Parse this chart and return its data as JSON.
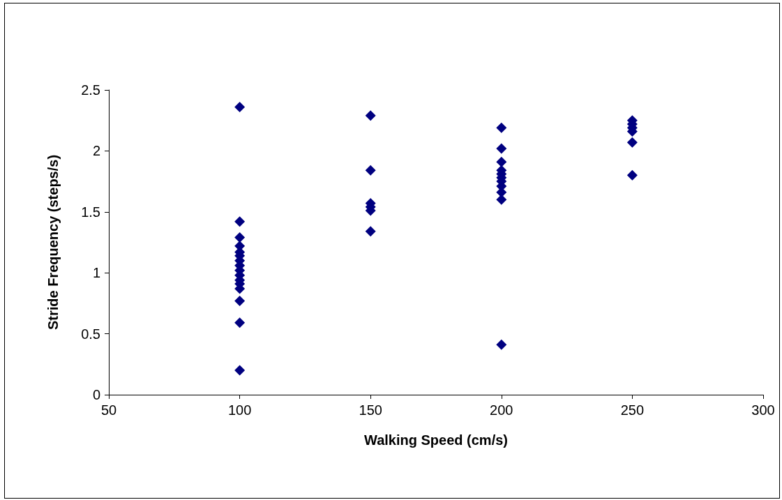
{
  "chart_data": {
    "type": "scatter",
    "xlabel": "Walking Speed (cm/s)",
    "ylabel": "Stride Frequency (steps/s)",
    "x": [
      100,
      100,
      100,
      100,
      100,
      100,
      100,
      100,
      100,
      100,
      100,
      100,
      100,
      100,
      100,
      100,
      150,
      150,
      150,
      150,
      150,
      150,
      200,
      200,
      200,
      200,
      200,
      200,
      200,
      200,
      200,
      200,
      200,
      250,
      250,
      250,
      250,
      250,
      250
    ],
    "values": [
      2.36,
      1.42,
      1.29,
      1.22,
      1.17,
      1.14,
      1.1,
      1.06,
      1.02,
      0.98,
      0.94,
      0.91,
      0.87,
      0.77,
      0.59,
      0.2,
      2.29,
      1.84,
      1.57,
      1.54,
      1.51,
      1.34,
      2.19,
      2.02,
      1.91,
      1.84,
      1.81,
      1.78,
      1.75,
      1.71,
      1.66,
      1.6,
      0.41,
      2.25,
      2.22,
      2.19,
      2.16,
      2.07,
      1.8
    ],
    "color": "#000080",
    "marker": "diamond",
    "grid": false,
    "xlim": [
      50,
      300
    ],
    "xticks": [
      50,
      100,
      150,
      200,
      250,
      300
    ],
    "ylim": [
      0,
      2.5
    ],
    "yticks": [
      0,
      0.5,
      1,
      1.5,
      2,
      2.5
    ]
  }
}
